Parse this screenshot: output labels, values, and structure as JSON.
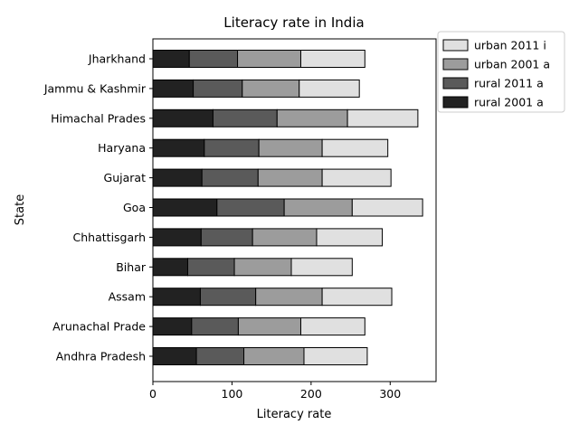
{
  "chart_data": {
    "type": "bar",
    "orientation": "horizontal",
    "stacked": true,
    "title": "Literacy rate in India",
    "xlabel": "Literacy rate",
    "ylabel": "State",
    "xlim": [
      0,
      358
    ],
    "xticks": [
      0,
      100,
      200,
      300
    ],
    "grid": false,
    "legend_position": "top-right-outside",
    "categories": [
      "Andhra Pradesh",
      "Arunachal Prade",
      "Assam",
      "Bihar",
      "Chhattisgarh",
      "Goa",
      "Gujarat",
      "Haryana",
      "Himachal Prades",
      "Jammu & Kashmir",
      "Jharkhand"
    ],
    "series": [
      {
        "name": "rural 2001 a",
        "color": "#222222",
        "values": [
          55,
          49,
          60,
          44,
          61,
          81,
          62,
          65,
          76,
          51,
          46
        ]
      },
      {
        "name": "rural 2011 a",
        "color": "#5a5a5a",
        "values": [
          60,
          59,
          70,
          59,
          65,
          85,
          71,
          69,
          81,
          62,
          61
        ]
      },
      {
        "name": "urban 2001 a",
        "color": "#9c9c9c",
        "values": [
          76,
          79,
          84,
          72,
          81,
          86,
          81,
          80,
          89,
          72,
          80
        ]
      },
      {
        "name": "urban 2011 i",
        "color": "#e0e0e0",
        "values": [
          80,
          81,
          88,
          77,
          83,
          89,
          87,
          83,
          89,
          76,
          81
        ]
      }
    ]
  }
}
